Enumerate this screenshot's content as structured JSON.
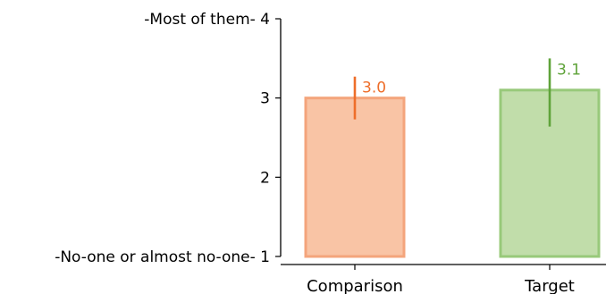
{
  "chart_data": {
    "type": "bar",
    "title": "",
    "xlabel": "",
    "ylabel": "",
    "ylim": [
      1,
      4
    ],
    "grid": false,
    "legend": "none",
    "categories": [
      "Comparison",
      "Target"
    ],
    "values": [
      3.0,
      3.1
    ],
    "error_low": [
      2.73,
      2.64
    ],
    "error_high": [
      3.27,
      3.5
    ],
    "value_labels": [
      "3.0",
      "3.1"
    ],
    "y_ticks": [
      {
        "value": 1,
        "label": "-No-one or almost no-one- 1"
      },
      {
        "value": 2,
        "label": "2"
      },
      {
        "value": 3,
        "label": "3"
      },
      {
        "value": 4,
        "label": "-Most of them- 4"
      }
    ],
    "colors": {
      "bar_fills": [
        "#f9c4a5",
        "#c1ddaa"
      ],
      "bar_edges": [
        "#f4a57c",
        "#98c97a"
      ],
      "accents": [
        "#ee6e2a",
        "#5fa33a"
      ],
      "axis": "#000000"
    }
  }
}
